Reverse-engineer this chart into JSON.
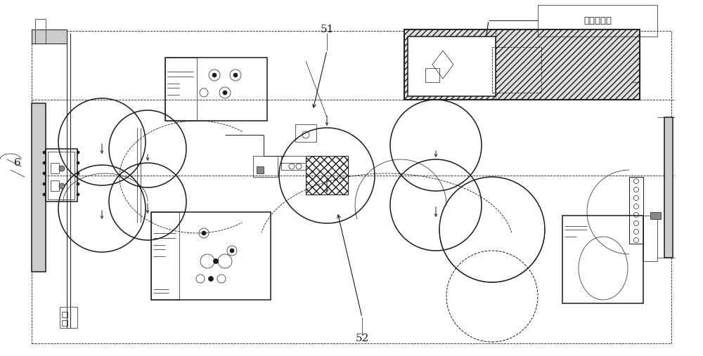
{
  "bg_color": "#ffffff",
  "line_color": "#1a1a1a",
  "label_51": "51",
  "label_52": "52",
  "label_6": "6",
  "label_card": "卡芯片识别",
  "fig_width": 10.0,
  "fig_height": 5.07,
  "dpi": 100
}
